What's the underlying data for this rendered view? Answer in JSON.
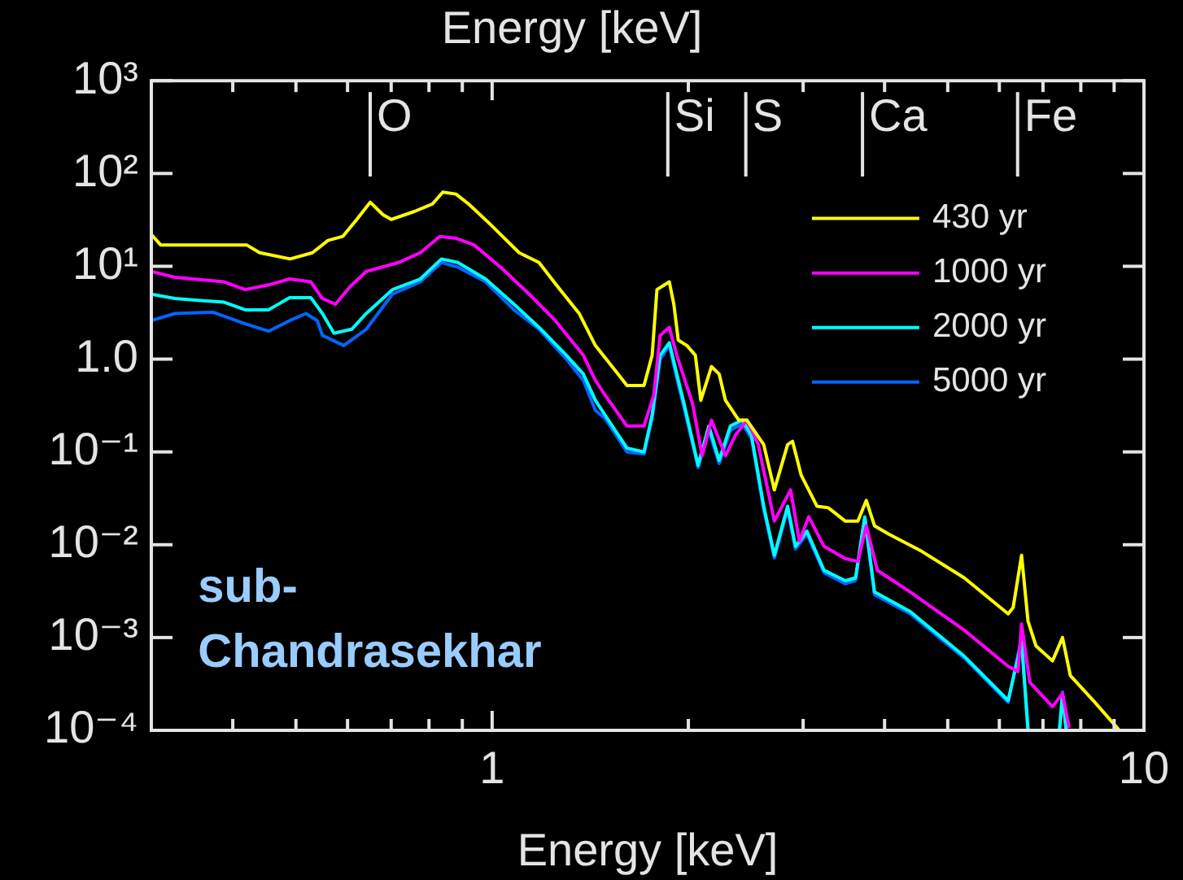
{
  "chart_data": {
    "type": "line",
    "title": "Energy [keV]",
    "xlabel": "Energy [keV]",
    "log": "xy",
    "xlim": [
      0.3,
      10
    ],
    "ylim": [
      0.0001,
      1000
    ],
    "xticks": [
      {
        "value": 0.4,
        "label": null
      },
      {
        "value": 0.5,
        "label": null
      },
      {
        "value": 0.6,
        "label": null
      },
      {
        "value": 0.7,
        "label": null
      },
      {
        "value": 0.8,
        "label": null
      },
      {
        "value": 0.9,
        "label": null
      },
      1,
      {
        "value": 2,
        "label": null
      },
      {
        "value": 3,
        "label": null
      },
      {
        "value": 4,
        "label": null
      },
      {
        "value": 5,
        "label": null
      },
      {
        "value": 6,
        "label": null
      },
      {
        "value": 7,
        "label": null
      },
      {
        "value": 8,
        "label": null
      },
      {
        "value": 9,
        "label": null
      },
      10
    ],
    "yticks": [
      {
        "value": 0.0001,
        "label": "10⁻⁴"
      },
      {
        "value": 0.001,
        "label": "10⁻³"
      },
      {
        "value": 0.01,
        "label": "10⁻²"
      },
      {
        "value": 0.1,
        "label": "10⁻¹"
      },
      {
        "value": 1,
        "label": "1.0"
      },
      {
        "value": 10,
        "label": "10¹"
      },
      {
        "value": 100,
        "label": "10²"
      },
      {
        "value": 1000,
        "label": "10³"
      }
    ],
    "legend": "top right",
    "series": [
      {
        "name": "430 yr",
        "color": "#ffff00",
        "x": [
          0.3,
          0.31,
          0.42,
          0.44,
          0.49,
          0.53,
          0.56,
          0.59,
          0.62,
          0.65,
          0.68,
          0.7,
          0.76,
          0.81,
          0.84,
          0.88,
          0.92,
          0.99,
          1.1,
          1.18,
          1.25,
          1.36,
          1.44,
          1.52,
          1.61,
          1.71,
          1.76,
          1.79,
          1.87,
          1.9,
          1.93,
          1.99,
          2.05,
          2.09,
          2.17,
          2.23,
          2.28,
          2.39,
          2.46,
          2.61,
          2.71,
          2.84,
          2.89,
          2.98,
          3.15,
          3.28,
          3.48,
          3.64,
          3.75,
          3.86,
          4.06,
          4.56,
          5.3,
          6.19,
          6.3,
          6.49,
          6.64,
          6.83,
          7.24,
          7.5,
          7.71,
          8.41,
          9.17
        ],
        "values": [
          22,
          17,
          17,
          14,
          12,
          14,
          19,
          21,
          32,
          49,
          36,
          32,
          39,
          47,
          63,
          60,
          47,
          29,
          14,
          11,
          6.5,
          3.1,
          1.4,
          0.87,
          0.52,
          0.52,
          1.1,
          5.6,
          6.8,
          3.9,
          1.6,
          1.4,
          1.1,
          0.36,
          0.83,
          0.69,
          0.36,
          0.22,
          0.22,
          0.12,
          0.039,
          0.12,
          0.13,
          0.056,
          0.026,
          0.025,
          0.018,
          0.018,
          0.03,
          0.016,
          0.013,
          0.0085,
          0.0044,
          0.0018,
          0.0021,
          0.0077,
          0.0015,
          0.00081,
          0.00056,
          0.001,
          0.00039,
          0.0002,
          0.0001
        ]
      },
      {
        "name": "1000 yr",
        "color": "#ff00ff",
        "x": [
          0.3,
          0.326,
          0.388,
          0.418,
          0.454,
          0.489,
          0.527,
          0.549,
          0.575,
          0.605,
          0.641,
          0.719,
          0.776,
          0.831,
          0.881,
          0.938,
          1.035,
          1.14,
          1.25,
          1.38,
          1.44,
          1.49,
          1.61,
          1.71,
          1.77,
          1.81,
          1.87,
          1.92,
          2.03,
          2.1,
          2.17,
          2.28,
          2.36,
          2.46,
          2.56,
          2.71,
          2.87,
          2.96,
          3.06,
          3.23,
          3.48,
          3.64,
          3.75,
          3.9,
          4.38,
          5.3,
          6.19,
          6.41,
          6.49,
          6.68,
          7.24,
          7.5,
          7.67
        ],
        "values": [
          8.8,
          7.6,
          6.8,
          5.6,
          6.3,
          7.3,
          6.8,
          4.5,
          3.9,
          6,
          8.8,
          11,
          14,
          21,
          20,
          17,
          9.5,
          5,
          2.6,
          1.1,
          0.59,
          0.41,
          0.19,
          0.19,
          0.41,
          1.8,
          2.2,
          1.1,
          0.33,
          0.091,
          0.22,
          0.091,
          0.15,
          0.22,
          0.12,
          0.018,
          0.039,
          0.011,
          0.02,
          0.0096,
          0.0071,
          0.0066,
          0.016,
          0.0053,
          0.0031,
          0.0012,
          0.00049,
          0.00043,
          0.0014,
          0.00033,
          0.00018,
          0.00025,
          0.00011
        ]
      },
      {
        "name": "2000 yr",
        "color": "#00ffff",
        "x": [
          0.3,
          0.326,
          0.388,
          0.418,
          0.454,
          0.489,
          0.527,
          0.549,
          0.572,
          0.609,
          0.641,
          0.703,
          0.776,
          0.836,
          0.886,
          0.977,
          1.08,
          1.18,
          1.3,
          1.38,
          1.44,
          1.49,
          1.61,
          1.71,
          1.76,
          1.81,
          1.87,
          1.92,
          1.97,
          2.07,
          2.15,
          2.23,
          2.32,
          2.42,
          2.5,
          2.61,
          2.71,
          2.84,
          2.92,
          3.04,
          3.23,
          3.48,
          3.61,
          3.73,
          3.86,
          4.38,
          5.3,
          6.19,
          6.49,
          6.64,
          7,
          7.42,
          7.5,
          7.6
        ],
        "values": [
          5,
          4.5,
          4.1,
          3.4,
          3.4,
          4.6,
          4.6,
          3.1,
          1.9,
          2.1,
          3.1,
          5.6,
          7.3,
          12,
          11,
          7.3,
          3.9,
          2.2,
          1.1,
          0.69,
          0.36,
          0.25,
          0.11,
          0.1,
          0.25,
          1.1,
          1.5,
          0.69,
          0.33,
          0.072,
          0.19,
          0.081,
          0.19,
          0.22,
          0.15,
          0.026,
          0.0077,
          0.026,
          0.0096,
          0.014,
          0.0053,
          0.0041,
          0.0044,
          0.02,
          0.0031,
          0.0019,
          0.00063,
          0.00021,
          0.0009,
          0.0001,
          null,
          0.0001,
          0.00024,
          0.0001
        ]
      },
      {
        "name": "5000 yr",
        "color": "#0066ff",
        "x": [
          0.3,
          0.326,
          0.373,
          0.418,
          0.454,
          0.489,
          0.518,
          0.539,
          0.549,
          0.592,
          0.641,
          0.703,
          0.776,
          0.836,
          0.886,
          0.977,
          1.08,
          1.18,
          1.3,
          1.38,
          1.44,
          1.49,
          1.61,
          1.71,
          1.76,
          1.81,
          1.87,
          1.92,
          1.97,
          2.07,
          2.15,
          2.23,
          2.32,
          2.42,
          2.5,
          2.61,
          2.71,
          2.84,
          2.92,
          3.04,
          3.23,
          3.48,
          3.61,
          3.73,
          3.86,
          4.38,
          5.3,
          6.19,
          6.49,
          6.64,
          7,
          7.42,
          7.5,
          7.6
        ],
        "values": [
          2.6,
          3.1,
          3.2,
          2.4,
          2,
          2.6,
          3.1,
          2.6,
          1.8,
          1.4,
          2.1,
          5,
          6.8,
          11,
          9.8,
          6.8,
          3.4,
          2.1,
          1,
          0.59,
          0.28,
          0.23,
          0.1,
          0.095,
          0.23,
          1,
          1.4,
          0.62,
          0.3,
          0.068,
          0.17,
          0.075,
          0.17,
          0.2,
          0.14,
          0.024,
          0.0072,
          0.024,
          0.009,
          0.013,
          0.005,
          0.0038,
          0.0041,
          0.019,
          0.0029,
          0.0018,
          0.0006,
          0.0002,
          0.001,
          0.0001,
          null,
          0.0001,
          0.00026,
          0.0001
        ]
      }
    ],
    "ref_lines": [
      {
        "axis": "x",
        "value": 0.65,
        "label": "O"
      },
      {
        "axis": "x",
        "value": 1.86,
        "label": "Si"
      },
      {
        "axis": "x",
        "value": 2.45,
        "label": "S"
      },
      {
        "axis": "x",
        "value": 3.7,
        "label": "Ca"
      },
      {
        "axis": "x",
        "value": 6.4,
        "label": "Fe"
      }
    ],
    "annotations": [
      "sub-Chandrasekhar"
    ]
  }
}
